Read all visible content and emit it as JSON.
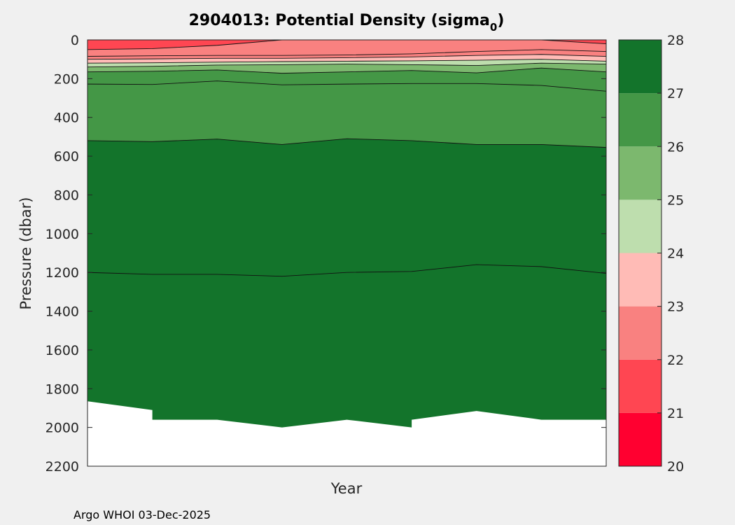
{
  "chart_data": {
    "type": "filled-contour",
    "title": "2904013: Potential Density (sigma",
    "title_subscript": "0",
    "title_suffix": ")",
    "xlabel": "Year",
    "ylabel": "Pressure (dbar)",
    "ylim": [
      0,
      2200
    ],
    "y_reversed": true,
    "yticks": [
      0,
      200,
      400,
      600,
      800,
      1000,
      1200,
      1400,
      1600,
      1800,
      2000,
      2200
    ],
    "xtick_labels": [],
    "x_range": [
      0,
      8
    ],
    "x_profiles": [
      0,
      1,
      2,
      3,
      4,
      5,
      6,
      7,
      8
    ],
    "colorbar": {
      "ticks": [
        20,
        21,
        22,
        23,
        24,
        25,
        26,
        27,
        28
      ],
      "levels": [
        {
          "min": 20,
          "max": 21,
          "color": "#ff0030"
        },
        {
          "min": 21,
          "max": 22,
          "color": "#ff4652"
        },
        {
          "min": 22,
          "max": 23,
          "color": "#f98180"
        },
        {
          "min": 23,
          "max": 24,
          "color": "#ffbbb6"
        },
        {
          "min": 24,
          "max": 25,
          "color": "#bedeae"
        },
        {
          "min": 25,
          "max": 26,
          "color": "#7cb86e"
        },
        {
          "min": 26,
          "max": 27,
          "color": "#449746"
        },
        {
          "min": 27,
          "max": 28,
          "color": "#13742b"
        }
      ]
    },
    "contours": [
      {
        "level": 21.0,
        "pressure": [
          0,
          0,
          0,
          0,
          0,
          0,
          0,
          0,
          0
        ]
      },
      {
        "level": 22.0,
        "pressure": [
          50,
          45,
          28,
          0,
          0,
          0,
          0,
          0,
          20
        ]
      },
      {
        "level": 22.5,
        "pressure": [
          85,
          82,
          80,
          80,
          78,
          72,
          60,
          50,
          60
        ]
      },
      {
        "level": 23.0,
        "pressure": [
          100,
          98,
          95,
          95,
          92,
          88,
          80,
          75,
          85
        ]
      },
      {
        "level": 24.0,
        "pressure": [
          120,
          118,
          115,
          112,
          110,
          108,
          105,
          100,
          110
        ]
      },
      {
        "level": 25.0,
        "pressure": [
          140,
          136,
          130,
          128,
          125,
          128,
          132,
          120,
          125
        ]
      },
      {
        "level": 26.0,
        "pressure": [
          165,
          162,
          155,
          172,
          165,
          158,
          170,
          145,
          165
        ]
      },
      {
        "level": 26.5,
        "pressure": [
          228,
          230,
          212,
          232,
          228,
          225,
          225,
          235,
          265
        ]
      },
      {
        "level": 27.0,
        "pressure": [
          520,
          525,
          512,
          540,
          510,
          520,
          540,
          540,
          555
        ]
      },
      {
        "level": 27.5,
        "pressure": [
          1200,
          1210,
          1210,
          1220,
          1200,
          1195,
          1160,
          1170,
          1205
        ]
      }
    ],
    "profile_bottom": {
      "x": [
        0,
        1,
        1,
        2,
        3,
        4,
        5,
        5,
        6,
        7,
        8
      ],
      "pressure": [
        1865,
        1910,
        1960,
        1960,
        2000,
        1960,
        2000,
        1960,
        1915,
        1960,
        1960
      ]
    },
    "footer": "Argo WHOI 03-Dec-2025"
  }
}
